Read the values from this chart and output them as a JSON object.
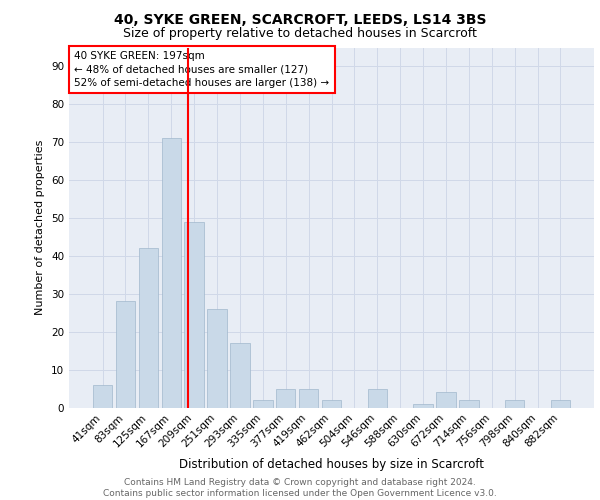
{
  "title1": "40, SYKE GREEN, SCARCROFT, LEEDS, LS14 3BS",
  "title2": "Size of property relative to detached houses in Scarcroft",
  "xlabel": "Distribution of detached houses by size in Scarcroft",
  "ylabel": "Number of detached properties",
  "categories": [
    "41sqm",
    "83sqm",
    "125sqm",
    "167sqm",
    "209sqm",
    "251sqm",
    "293sqm",
    "335sqm",
    "377sqm",
    "419sqm",
    "462sqm",
    "504sqm",
    "546sqm",
    "588sqm",
    "630sqm",
    "672sqm",
    "714sqm",
    "756sqm",
    "798sqm",
    "840sqm",
    "882sqm"
  ],
  "values": [
    6,
    28,
    42,
    71,
    49,
    26,
    17,
    2,
    5,
    5,
    2,
    0,
    5,
    0,
    1,
    4,
    2,
    0,
    2,
    0,
    2
  ],
  "bar_color": "#c9d9e8",
  "bar_edge_color": "#a0b8cc",
  "vline_color": "red",
  "annotation_box_text": "40 SYKE GREEN: 197sqm\n← 48% of detached houses are smaller (127)\n52% of semi-detached houses are larger (138) →",
  "annotation_box_color": "red",
  "ylim": [
    0,
    95
  ],
  "yticks": [
    0,
    10,
    20,
    30,
    40,
    50,
    60,
    70,
    80,
    90
  ],
  "grid_color": "#d0d8e8",
  "background_color": "#e8edf5",
  "footer_text": "Contains HM Land Registry data © Crown copyright and database right 2024.\nContains public sector information licensed under the Open Government Licence v3.0.",
  "title1_fontsize": 10,
  "title2_fontsize": 9,
  "xlabel_fontsize": 8.5,
  "ylabel_fontsize": 8,
  "tick_fontsize": 7.5,
  "annotation_fontsize": 7.5,
  "footer_fontsize": 6.5
}
